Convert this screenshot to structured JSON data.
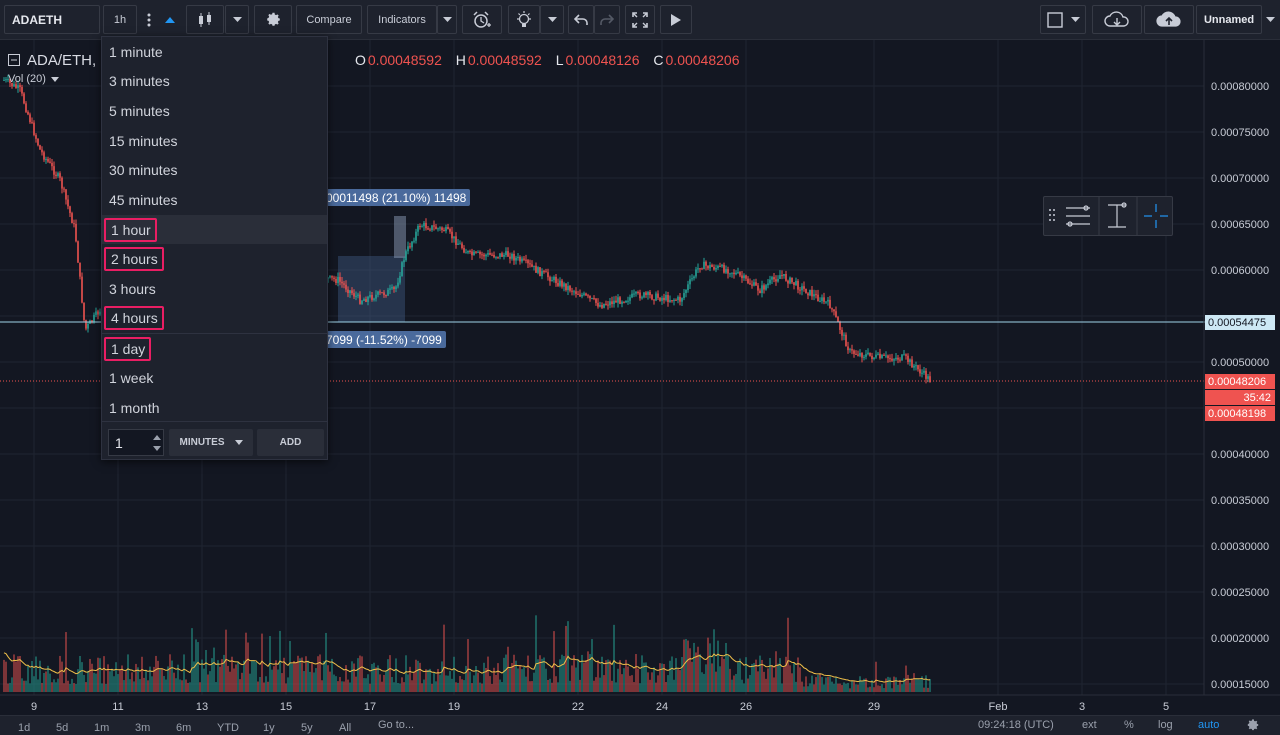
{
  "toolbar": {
    "symbol": "ADAETH",
    "interval": "1h",
    "compare_label": "Compare",
    "indicators_label": "Indicators",
    "layout_name": "Unnamed"
  },
  "legend": {
    "pair": "ADA/ETH,",
    "o_label": "O",
    "o_value": "0.00048592",
    "h_label": "H",
    "h_value": "0.00048592",
    "l_label": "L",
    "l_value": "0.00048126",
    "c_label": "C",
    "c_value": "0.00048206",
    "vol_label": "Vol (20)"
  },
  "interval_menu": {
    "items": [
      {
        "label": "1 minute",
        "highlighted": false
      },
      {
        "label": "3 minutes",
        "highlighted": false
      },
      {
        "label": "5 minutes",
        "highlighted": false
      },
      {
        "label": "15 minutes",
        "highlighted": false
      },
      {
        "label": "30 minutes",
        "highlighted": false
      },
      {
        "label": "45 minutes",
        "highlighted": false
      },
      {
        "label": "1 hour",
        "highlighted": true
      },
      {
        "label": "2 hours",
        "highlighted": true
      },
      {
        "label": "3 hours",
        "highlighted": false
      },
      {
        "label": "4 hours",
        "highlighted": true
      },
      {
        "label": "1 day",
        "highlighted": true
      },
      {
        "label": "1 week",
        "highlighted": false
      },
      {
        "label": "1 month",
        "highlighted": false
      }
    ],
    "custom_value": "1",
    "custom_unit": "MINUTES",
    "add_label": "ADD"
  },
  "measure": {
    "upper_label": "00011498 (21.10%) 11498",
    "lower_label": "7099 (-11.52%) -7099"
  },
  "price_axis": {
    "ticks": [
      "0.00080000",
      "0.00075000",
      "0.00070000",
      "0.00065000",
      "0.00060000",
      "0.00050000",
      "0.00040000",
      "0.00035000",
      "0.00030000",
      "0.00025000",
      "0.00020000",
      "0.00015000"
    ],
    "crosshair_label": "0.00054475",
    "last_price_label": "0.00048206",
    "countdown_label": "35:42",
    "bid_label": "0.00048198"
  },
  "time_axis": {
    "ticks": [
      "9",
      "11",
      "13",
      "15",
      "17",
      "19",
      "22",
      "24",
      "26",
      "29",
      "Feb",
      "3",
      "5"
    ]
  },
  "bottom_bar": {
    "ranges": [
      "1d",
      "5d",
      "1m",
      "3m",
      "6m",
      "YTD",
      "1y",
      "5y",
      "All"
    ],
    "goto_label": "Go to...",
    "clock": "09:24:18 (UTC)",
    "ext_label": "ext",
    "percent_label": "%",
    "log_label": "log",
    "auto_label": "auto"
  },
  "colors": {
    "up": "#26a69a",
    "down": "#ef5350",
    "background": "#131722",
    "accent": "#2196f3",
    "highlight_box": "#e91e63",
    "volume_ma": "#f0c04a"
  }
}
